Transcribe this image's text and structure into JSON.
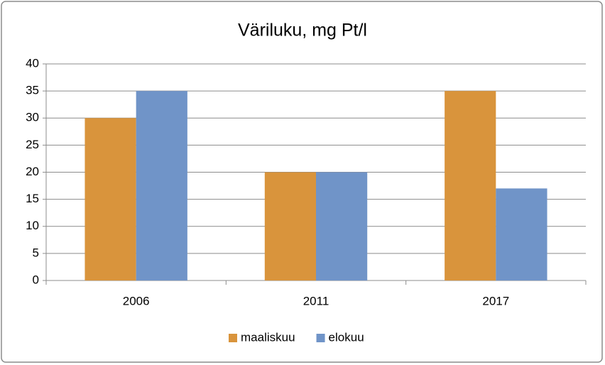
{
  "chart_data": {
    "type": "bar",
    "title": "Väriluku, mg Pt/l",
    "categories": [
      "2006",
      "2011",
      "2017"
    ],
    "series": [
      {
        "name": "maaliskuu",
        "color": "#d9943c",
        "values": [
          30,
          20,
          35
        ]
      },
      {
        "name": "elokuu",
        "color": "#7094c8",
        "values": [
          35,
          20,
          17
        ]
      }
    ],
    "ylim": [
      0,
      40
    ],
    "yticks": [
      0,
      5,
      10,
      15,
      20,
      25,
      30,
      35,
      40
    ],
    "grid": true,
    "legend": "bottom"
  }
}
